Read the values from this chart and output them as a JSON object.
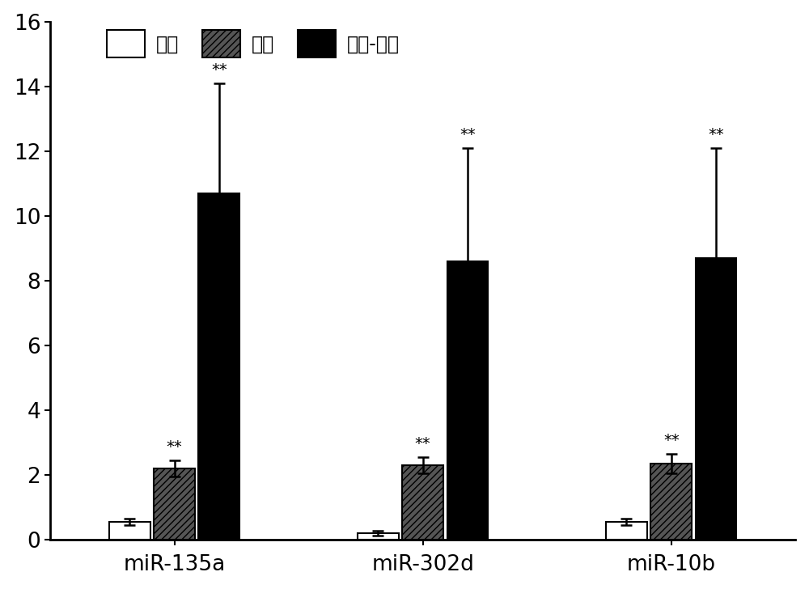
{
  "groups": [
    "miR-135a",
    "miR-302d",
    "miR-10b"
  ],
  "categories": [
    "正常",
    "肝癌",
    "肝癌-癌栓"
  ],
  "values": [
    [
      0.55,
      2.2,
      10.7
    ],
    [
      0.2,
      2.3,
      8.6
    ],
    [
      0.55,
      2.35,
      8.7
    ]
  ],
  "errors": [
    [
      0.1,
      0.25,
      3.4
    ],
    [
      0.08,
      0.25,
      3.5
    ],
    [
      0.1,
      0.3,
      3.4
    ]
  ],
  "ylim": [
    0,
    16
  ],
  "yticks": [
    0,
    2,
    4,
    6,
    8,
    10,
    12,
    14,
    16
  ],
  "bar_width": 0.18,
  "group_centers": [
    0.35,
    1.35,
    2.35
  ],
  "background_color": "#ffffff",
  "bar_facecolors": [
    "white",
    "#555555",
    "black"
  ],
  "bar_hatches": [
    null,
    "////",
    null
  ],
  "bar_edgecolors": [
    "black",
    "black",
    "black"
  ],
  "figsize": [
    10.0,
    7.28
  ],
  "dpi": 100,
  "legend_fontsize": 17,
  "tick_fontsize": 19,
  "sig_fontsize": 14
}
